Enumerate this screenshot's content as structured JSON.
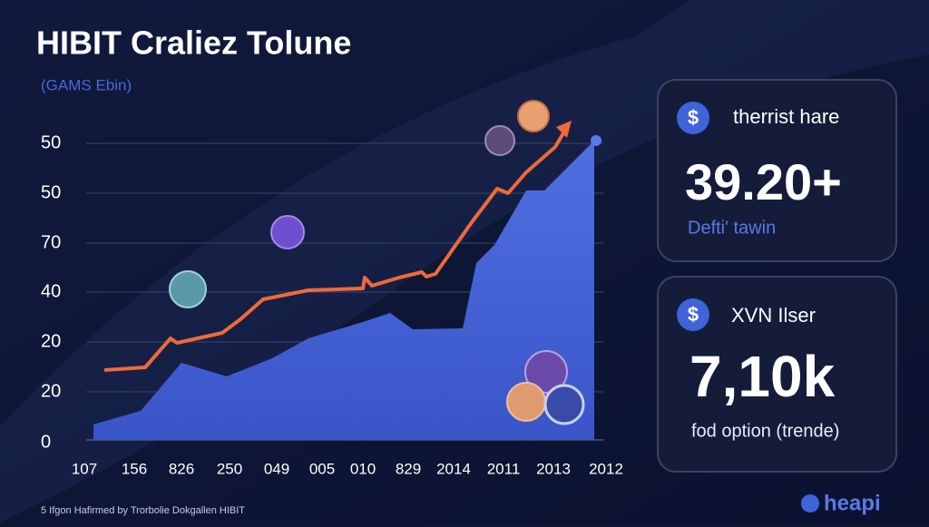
{
  "header": {
    "title": "HIBIT Craliez Tolune",
    "subtitle": "(GAMS Ebin)"
  },
  "chart": {
    "y_labels": [
      "50",
      "50",
      "70",
      "40",
      "20",
      "20",
      "0"
    ],
    "x_labels": [
      "107",
      "156",
      "826",
      "250",
      "049",
      "005",
      "010",
      "829",
      "2014",
      "2011",
      "2013",
      "2012"
    ]
  },
  "cards": [
    {
      "label": "therrist hare",
      "value": "39.20+",
      "caption": "Defti' tawin"
    },
    {
      "label": "XVN Ilser",
      "value": "7,10k",
      "caption": "fod option (trende)"
    }
  ],
  "footer": "5 Ifgon Hafirmed by Trorbolie Dokgallen HIBIT",
  "logo": "heapi"
}
